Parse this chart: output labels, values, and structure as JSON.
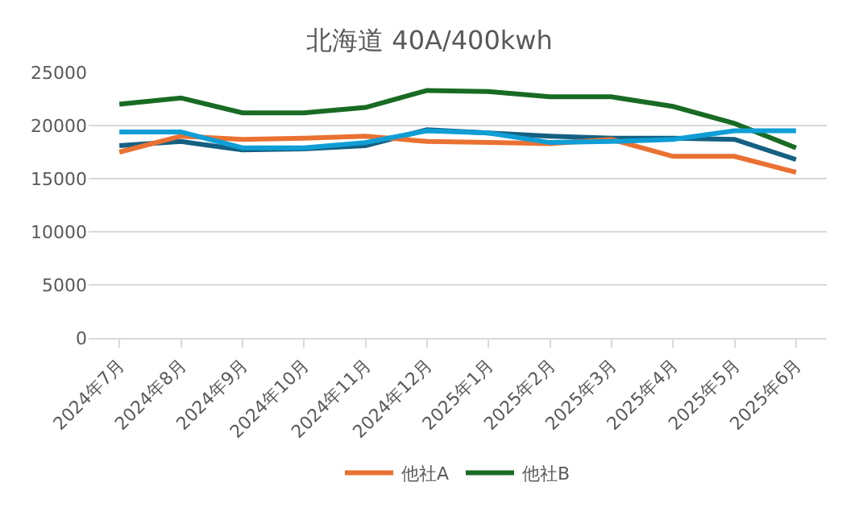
{
  "chart_data": {
    "type": "line",
    "title": "北海道 40A/400kwh",
    "categories": [
      "2024年7月",
      "2024年8月",
      "2024年9月",
      "2024年10月",
      "2024年11月",
      "2024年12月",
      "2025年1月",
      "2025年2月",
      "2025年3月",
      "2025年4月",
      "2025年5月",
      "2025年6月"
    ],
    "series": [
      {
        "color": "#156082",
        "values": [
          18100,
          18500,
          17700,
          17800,
          18100,
          19600,
          19300,
          19000,
          18800,
          18800,
          18700,
          16800
        ]
      },
      {
        "name": "他社A",
        "color": "#e97132",
        "values": [
          17500,
          19000,
          18700,
          18800,
          19000,
          18500,
          18400,
          18300,
          18700,
          17100,
          17100,
          15600
        ]
      },
      {
        "name": "他社B",
        "color": "#196b24",
        "values": [
          22000,
          22600,
          21200,
          21200,
          21700,
          23300,
          23200,
          22700,
          22700,
          21800,
          20200,
          17900
        ]
      },
      {
        "color": "#0f9ed5",
        "values": [
          19400,
          19400,
          17900,
          17900,
          18400,
          19500,
          19300,
          18400,
          18500,
          18700,
          19500,
          19500
        ]
      }
    ],
    "ylim": [
      0,
      25000
    ],
    "yticks": [
      0,
      5000,
      10000,
      15000,
      20000,
      25000
    ],
    "grid": "y",
    "legend": "bottom",
    "marker": "none",
    "line_style": "solid"
  }
}
